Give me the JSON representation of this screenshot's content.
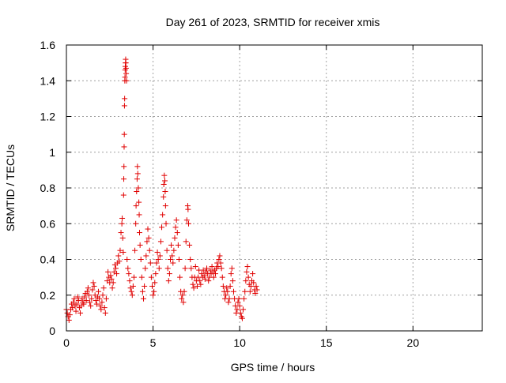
{
  "chart_data": {
    "type": "scatter",
    "title": "Day 261 of 2023, SRMTID for receiver xmis",
    "xlabel": "GPS time / hours",
    "ylabel": "SRMTID / TECUs",
    "xlim": [
      0,
      24
    ],
    "ylim": [
      0,
      1.6
    ],
    "xticks": [
      0,
      5,
      10,
      15,
      20
    ],
    "xtick_labels": [
      "0",
      "5",
      "10",
      "15",
      "20"
    ],
    "yticks": [
      0,
      0.2,
      0.4,
      0.6,
      0.8,
      1.0,
      1.2,
      1.4,
      1.6
    ],
    "ytick_labels": [
      "0",
      "0.2",
      "0.4",
      "0.6",
      "0.8",
      "1",
      "1.2",
      "1.4",
      "1.6"
    ],
    "grid": true,
    "marker": "+",
    "marker_color": "#e00000",
    "series": [
      {
        "name": "xmis",
        "points": [
          [
            0.0,
            0.12
          ],
          [
            0.05,
            0.1
          ],
          [
            0.1,
            0.08
          ],
          [
            0.15,
            0.06
          ],
          [
            0.2,
            0.09
          ],
          [
            0.25,
            0.12
          ],
          [
            0.3,
            0.15
          ],
          [
            0.35,
            0.13
          ],
          [
            0.4,
            0.16
          ],
          [
            0.45,
            0.18
          ],
          [
            0.5,
            0.14
          ],
          [
            0.55,
            0.11
          ],
          [
            0.6,
            0.15
          ],
          [
            0.65,
            0.19
          ],
          [
            0.7,
            0.17
          ],
          [
            0.75,
            0.13
          ],
          [
            0.8,
            0.1
          ],
          [
            0.85,
            0.14
          ],
          [
            0.9,
            0.18
          ],
          [
            0.95,
            0.16
          ],
          [
            1.0,
            0.15
          ],
          [
            1.05,
            0.19
          ],
          [
            1.1,
            0.21
          ],
          [
            1.15,
            0.17
          ],
          [
            1.2,
            0.22
          ],
          [
            1.25,
            0.24
          ],
          [
            1.3,
            0.2
          ],
          [
            1.35,
            0.16
          ],
          [
            1.4,
            0.14
          ],
          [
            1.45,
            0.18
          ],
          [
            1.5,
            0.23
          ],
          [
            1.55,
            0.27
          ],
          [
            1.6,
            0.25
          ],
          [
            1.65,
            0.2
          ],
          [
            1.7,
            0.17
          ],
          [
            1.75,
            0.15
          ],
          [
            1.8,
            0.19
          ],
          [
            1.85,
            0.22
          ],
          [
            1.9,
            0.18
          ],
          [
            1.95,
            0.14
          ],
          [
            2.0,
            0.12
          ],
          [
            2.05,
            0.16
          ],
          [
            2.1,
            0.2
          ],
          [
            2.15,
            0.24
          ],
          [
            2.2,
            0.13
          ],
          [
            2.25,
            0.1
          ],
          [
            2.3,
            0.18
          ],
          [
            2.35,
            0.28
          ],
          [
            2.4,
            0.33
          ],
          [
            2.45,
            0.3
          ],
          [
            2.5,
            0.27
          ],
          [
            2.55,
            0.31
          ],
          [
            2.6,
            0.29
          ],
          [
            2.65,
            0.24
          ],
          [
            2.7,
            0.27
          ],
          [
            2.75,
            0.33
          ],
          [
            2.8,
            0.37
          ],
          [
            2.85,
            0.35
          ],
          [
            2.9,
            0.32
          ],
          [
            2.95,
            0.38
          ],
          [
            3.0,
            0.42
          ],
          [
            3.05,
            0.39
          ],
          [
            3.1,
            0.45
          ],
          [
            3.15,
            0.55
          ],
          [
            3.2,
            0.6
          ],
          [
            3.22,
            0.63
          ],
          [
            3.25,
            0.52
          ],
          [
            3.28,
            0.44
          ],
          [
            3.3,
            0.76
          ],
          [
            3.31,
            0.85
          ],
          [
            3.32,
            0.92
          ],
          [
            3.33,
            1.03
          ],
          [
            3.34,
            1.1
          ],
          [
            3.35,
            1.26
          ],
          [
            3.36,
            1.3
          ],
          [
            3.37,
            1.4
          ],
          [
            3.38,
            1.42
          ],
          [
            3.39,
            1.46
          ],
          [
            3.4,
            1.48
          ],
          [
            3.41,
            1.5
          ],
          [
            3.42,
            1.52
          ],
          [
            3.43,
            1.5
          ],
          [
            3.44,
            1.47
          ],
          [
            3.45,
            1.44
          ],
          [
            3.47,
            1.4
          ],
          [
            3.5,
            0.4
          ],
          [
            3.55,
            0.35
          ],
          [
            3.6,
            0.32
          ],
          [
            3.65,
            0.28
          ],
          [
            3.7,
            0.24
          ],
          [
            3.75,
            0.22
          ],
          [
            3.8,
            0.2
          ],
          [
            3.85,
            0.25
          ],
          [
            3.9,
            0.3
          ],
          [
            3.95,
            0.45
          ],
          [
            4.0,
            0.6
          ],
          [
            4.02,
            0.7
          ],
          [
            4.05,
            0.78
          ],
          [
            4.08,
            0.85
          ],
          [
            4.1,
            0.92
          ],
          [
            4.12,
            0.88
          ],
          [
            4.15,
            0.8
          ],
          [
            4.18,
            0.72
          ],
          [
            4.2,
            0.65
          ],
          [
            4.22,
            0.55
          ],
          [
            4.25,
            0.48
          ],
          [
            4.3,
            0.4
          ],
          [
            4.35,
            0.3
          ],
          [
            4.4,
            0.22
          ],
          [
            4.45,
            0.18
          ],
          [
            4.5,
            0.25
          ],
          [
            4.55,
            0.35
          ],
          [
            4.6,
            0.42
          ],
          [
            4.65,
            0.5
          ],
          [
            4.7,
            0.57
          ],
          [
            4.75,
            0.52
          ],
          [
            4.8,
            0.45
          ],
          [
            4.85,
            0.38
          ],
          [
            4.9,
            0.3
          ],
          [
            4.95,
            0.25
          ],
          [
            5.0,
            0.2
          ],
          [
            5.05,
            0.22
          ],
          [
            5.1,
            0.27
          ],
          [
            5.15,
            0.32
          ],
          [
            5.2,
            0.38
          ],
          [
            5.25,
            0.44
          ],
          [
            5.3,
            0.4
          ],
          [
            5.35,
            0.35
          ],
          [
            5.4,
            0.42
          ],
          [
            5.45,
            0.5
          ],
          [
            5.5,
            0.58
          ],
          [
            5.55,
            0.65
          ],
          [
            5.6,
            0.75
          ],
          [
            5.62,
            0.82
          ],
          [
            5.65,
            0.87
          ],
          [
            5.68,
            0.84
          ],
          [
            5.7,
            0.78
          ],
          [
            5.72,
            0.7
          ],
          [
            5.75,
            0.6
          ],
          [
            5.8,
            0.45
          ],
          [
            5.85,
            0.35
          ],
          [
            5.9,
            0.28
          ],
          [
            5.95,
            0.32
          ],
          [
            6.0,
            0.4
          ],
          [
            6.05,
            0.48
          ],
          [
            6.1,
            0.42
          ],
          [
            6.15,
            0.38
          ],
          [
            6.2,
            0.45
          ],
          [
            6.25,
            0.52
          ],
          [
            6.3,
            0.58
          ],
          [
            6.35,
            0.62
          ],
          [
            6.4,
            0.55
          ],
          [
            6.45,
            0.48
          ],
          [
            6.5,
            0.4
          ],
          [
            6.55,
            0.3
          ],
          [
            6.6,
            0.22
          ],
          [
            6.65,
            0.18
          ],
          [
            6.7,
            0.2
          ],
          [
            6.75,
            0.16
          ],
          [
            6.8,
            0.22
          ],
          [
            6.85,
            0.35
          ],
          [
            6.9,
            0.5
          ],
          [
            6.95,
            0.62
          ],
          [
            7.0,
            0.7
          ],
          [
            7.02,
            0.68
          ],
          [
            7.05,
            0.6
          ],
          [
            7.1,
            0.48
          ],
          [
            7.15,
            0.4
          ],
          [
            7.2,
            0.35
          ],
          [
            7.25,
            0.3
          ],
          [
            7.3,
            0.26
          ],
          [
            7.35,
            0.24
          ],
          [
            7.4,
            0.3
          ],
          [
            7.45,
            0.36
          ],
          [
            7.5,
            0.28
          ],
          [
            7.55,
            0.25
          ],
          [
            7.6,
            0.3
          ],
          [
            7.65,
            0.34
          ],
          [
            7.7,
            0.28
          ],
          [
            7.75,
            0.26
          ],
          [
            7.8,
            0.32
          ],
          [
            7.85,
            0.3
          ],
          [
            7.9,
            0.34
          ],
          [
            7.95,
            0.31
          ],
          [
            8.0,
            0.29
          ],
          [
            8.05,
            0.33
          ],
          [
            8.1,
            0.35
          ],
          [
            8.15,
            0.32
          ],
          [
            8.2,
            0.28
          ],
          [
            8.25,
            0.3
          ],
          [
            8.3,
            0.34
          ],
          [
            8.35,
            0.32
          ],
          [
            8.4,
            0.36
          ],
          [
            8.45,
            0.33
          ],
          [
            8.5,
            0.3
          ],
          [
            8.55,
            0.34
          ],
          [
            8.6,
            0.32
          ],
          [
            8.65,
            0.35
          ],
          [
            8.7,
            0.38
          ],
          [
            8.75,
            0.36
          ],
          [
            8.8,
            0.4
          ],
          [
            8.85,
            0.42
          ],
          [
            8.9,
            0.38
          ],
          [
            8.95,
            0.35
          ],
          [
            9.0,
            0.3
          ],
          [
            9.05,
            0.25
          ],
          [
            9.1,
            0.22
          ],
          [
            9.15,
            0.18
          ],
          [
            9.2,
            0.2
          ],
          [
            9.25,
            0.24
          ],
          [
            9.3,
            0.22
          ],
          [
            9.35,
            0.16
          ],
          [
            9.4,
            0.18
          ],
          [
            9.45,
            0.25
          ],
          [
            9.5,
            0.32
          ],
          [
            9.55,
            0.35
          ],
          [
            9.6,
            0.28
          ],
          [
            9.65,
            0.22
          ],
          [
            9.7,
            0.18
          ],
          [
            9.75,
            0.14
          ],
          [
            9.8,
            0.1
          ],
          [
            9.85,
            0.12
          ],
          [
            9.9,
            0.16
          ],
          [
            9.95,
            0.18
          ],
          [
            10.0,
            0.14
          ],
          [
            10.05,
            0.1
          ],
          [
            10.1,
            0.08
          ],
          [
            10.15,
            0.07
          ],
          [
            10.2,
            0.12
          ],
          [
            10.25,
            0.18
          ],
          [
            10.3,
            0.22
          ],
          [
            10.35,
            0.28
          ],
          [
            10.4,
            0.33
          ],
          [
            10.45,
            0.36
          ],
          [
            10.5,
            0.3
          ],
          [
            10.55,
            0.26
          ],
          [
            10.6,
            0.22
          ],
          [
            10.65,
            0.25
          ],
          [
            10.7,
            0.28
          ],
          [
            10.75,
            0.32
          ],
          [
            10.8,
            0.27
          ],
          [
            10.85,
            0.23
          ],
          [
            10.9,
            0.21
          ],
          [
            10.95,
            0.25
          ],
          [
            11.0,
            0.23
          ]
        ]
      }
    ]
  }
}
